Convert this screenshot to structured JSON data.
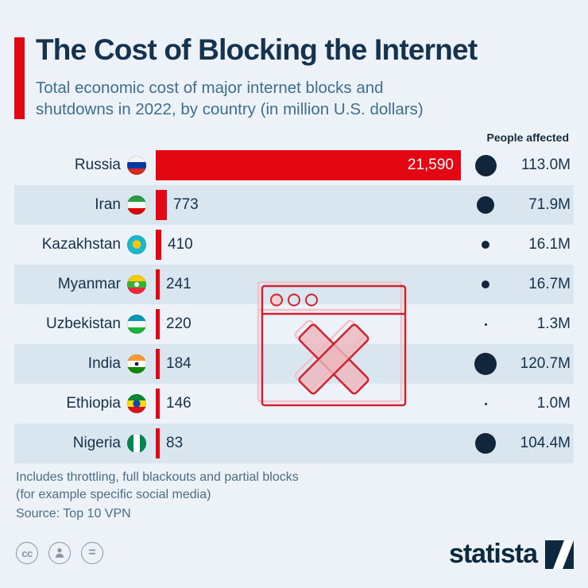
{
  "header": {
    "title": "The Cost of Blocking the Internet",
    "subtitle_line1": "Total economic cost of major internet blocks and",
    "subtitle_line2": "shutdowns in 2022, by country (in million U.S. dollars)"
  },
  "chart_data": {
    "type": "bar",
    "title": "The Cost of Blocking the Internet",
    "unit": "million U.S. dollars",
    "column_header": "People affected",
    "xlim": [
      0,
      21590
    ],
    "rows": [
      {
        "country": "Russia",
        "flag": "russia",
        "cost": 21590,
        "cost_label": "21,590",
        "people_millions": 113.0,
        "people_label": "113.0M"
      },
      {
        "country": "Iran",
        "flag": "iran",
        "cost": 773,
        "cost_label": "773",
        "people_millions": 71.9,
        "people_label": "71.9M"
      },
      {
        "country": "Kazakhstan",
        "flag": "kazakhstan",
        "cost": 410,
        "cost_label": "410",
        "people_millions": 16.1,
        "people_label": "16.1M"
      },
      {
        "country": "Myanmar",
        "flag": "myanmar",
        "cost": 241,
        "cost_label": "241",
        "people_millions": 16.7,
        "people_label": "16.7M"
      },
      {
        "country": "Uzbekistan",
        "flag": "uzbekistan",
        "cost": 220,
        "cost_label": "220",
        "people_millions": 1.3,
        "people_label": "1.3M"
      },
      {
        "country": "India",
        "flag": "india",
        "cost": 184,
        "cost_label": "184",
        "people_millions": 120.7,
        "people_label": "120.7M"
      },
      {
        "country": "Ethiopia",
        "flag": "ethiopia",
        "cost": 146,
        "cost_label": "146",
        "people_millions": 1.0,
        "people_label": "1.0M"
      },
      {
        "country": "Nigeria",
        "flag": "nigeria",
        "cost": 83,
        "cost_label": "83",
        "people_millions": 104.4,
        "people_label": "104.4M"
      }
    ]
  },
  "footer": {
    "note_line1": "Includes throttling, full blackouts and partial blocks",
    "note_line2": "(for example specific social media)",
    "source": "Source: Top 10 VPN"
  },
  "branding": {
    "logo_text": "statista",
    "cc_label": "cc",
    "nd_label": "=",
    "license_icons": [
      "cc-icon",
      "attribution-person-icon",
      "no-derivatives-icon"
    ]
  },
  "watermark": {
    "icon": "blocked-browser-window-icon"
  },
  "colors": {
    "accent_red": "#e30613",
    "navy": "#12263b",
    "title_navy": "#15324e",
    "subtitle_blue": "#3f6e8e",
    "row_alt": "#d9e6f0",
    "background": "#edf2f8"
  }
}
